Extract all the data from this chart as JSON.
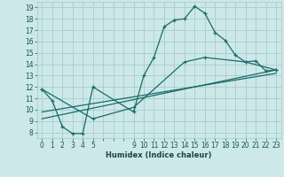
{
  "xlabel": "Humidex (Indice chaleur)",
  "bg_color": "#cce8e8",
  "grid_color": "#aacccc",
  "line_color": "#1a6b6b",
  "xlim": [
    -0.5,
    23.5
  ],
  "ylim": [
    7.5,
    19.5
  ],
  "xtick_positions": [
    0,
    1,
    2,
    3,
    4,
    5,
    6,
    7,
    8,
    9,
    10,
    11,
    12,
    13,
    14,
    15,
    16,
    17,
    18,
    19,
    20,
    21,
    22,
    23
  ],
  "xtick_labels": [
    "0",
    "1",
    "2",
    "3",
    "4",
    "5",
    "",
    "",
    "",
    "9",
    "10",
    "11",
    "12",
    "13",
    "14",
    "15",
    "16",
    "17",
    "18",
    "19",
    "20",
    "21",
    "22",
    "23"
  ],
  "ytick_positions": [
    8,
    9,
    10,
    11,
    12,
    13,
    14,
    15,
    16,
    17,
    18,
    19
  ],
  "ytick_labels": [
    "8",
    "9",
    "10",
    "11",
    "12",
    "13",
    "14",
    "15",
    "16",
    "17",
    "18",
    "19"
  ],
  "line1_x": [
    0,
    1,
    2,
    3,
    4,
    5,
    9,
    10,
    11,
    12,
    13,
    14,
    15,
    16,
    17,
    18,
    19,
    20,
    21,
    22,
    23
  ],
  "line1_y": [
    11.8,
    10.8,
    8.5,
    7.9,
    7.9,
    12.0,
    9.8,
    13.0,
    14.6,
    17.3,
    17.9,
    18.0,
    19.1,
    18.5,
    16.8,
    16.1,
    14.8,
    14.2,
    14.3,
    13.4,
    13.5
  ],
  "line2_x": [
    0,
    5,
    9,
    14,
    16,
    20,
    23
  ],
  "line2_y": [
    11.8,
    9.2,
    10.2,
    14.2,
    14.6,
    14.2,
    13.5
  ],
  "line3_x": [
    0,
    23
  ],
  "line3_y": [
    9.2,
    13.5
  ],
  "line4_x": [
    0,
    23
  ],
  "line4_y": [
    9.8,
    13.2
  ]
}
